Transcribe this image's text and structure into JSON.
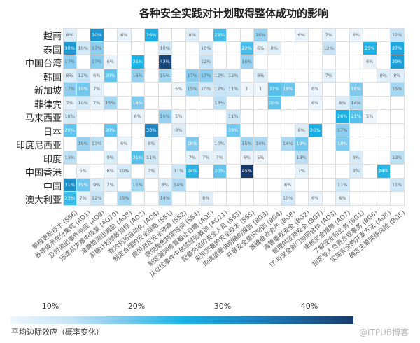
{
  "chart_data": {
    "type": "heatmap",
    "title": "各种安全实践对计划取得整体成功的影响",
    "columns": [
      "积极更新技术 (SS6)",
      "各项技术充分集成 (AO1)",
      "及时做出事件响应 (AO9)",
      "迅速从灾难中恢复 (AO10)",
      "准确检测出威胁 (AO8)",
      "实施计划绩效指标 (AO2)",
      "有效利用自动化 (AO4)",
      "制定合理的安全战略 (SS1)",
      "提供充足安全预算 (SS2)",
      "提供角色特定培训 (SS4)",
      "制定漏洞修复截止日期 (AO5)",
      "从以往事件中总结经验教训 (AO11)",
      "配备充足的安全人员 (SS3)",
      "采用完备的安全技术 (SS5)",
      "向高层提供明确的报告 (BG3)",
      "开展安全意识培训 (BG4)",
      "准确盘点资产 (BG8)",
      "高管重视安全 (BG2)",
      "管理供应商安全 (BG7)",
      "IT 与安全部门协同合作 (AO3)",
      "审核安全措施 (AO7)",
      "了解安全和业务 (BG1)",
      "指定专人负责合规事务 (BG6)",
      "实施安全的开发方法 (AO6)",
      "确定主要网络风险 (BG5)"
    ],
    "rows": [
      {
        "label": "越南",
        "cells": [
          "8%",
          null,
          "30%",
          null,
          "6%",
          null,
          "26%",
          null,
          null,
          "8%",
          null,
          "22%",
          null,
          null,
          "16%",
          null,
          null,
          "6%",
          null,
          "7%",
          null,
          "6%",
          null,
          null,
          "12%"
        ]
      },
      {
        "label": "泰国",
        "cells": [
          "30%",
          "10%",
          "17%",
          null,
          null,
          null,
          null,
          "10%",
          null,
          null,
          "10%",
          null,
          null,
          "22%",
          "6%",
          "8%",
          null,
          null,
          null,
          "12%",
          null,
          null,
          "25%",
          null,
          "27%"
        ]
      },
      {
        "label": "中国台湾",
        "cells": [
          "17%",
          null,
          "17%",
          "6%",
          null,
          "25%",
          null,
          "43%",
          null,
          null,
          "12%",
          null,
          null,
          "16%",
          null,
          null,
          null,
          null,
          null,
          null,
          null,
          null,
          "6%",
          null,
          "29%"
        ]
      },
      {
        "label": "韩国",
        "cells": [
          "8%",
          "12%",
          "6%",
          "20%",
          null,
          "16%",
          null,
          "15%",
          null,
          "17%",
          "17%",
          "12%",
          "12%",
          null,
          "8%",
          null,
          null,
          null,
          null,
          "7%",
          null,
          null,
          null,
          "8%",
          "8%"
        ]
      },
      {
        "label": "新加坡",
        "cells": [
          "17%",
          "19%",
          "7%",
          null,
          null,
          null,
          null,
          null,
          "5%",
          "15%",
          "10%",
          "12%",
          "11%",
          "1",
          "1",
          "21%",
          "19%",
          null,
          "6%",
          null,
          null,
          "18%",
          null,
          null,
          "15%"
        ]
      },
      {
        "label": "菲律宾",
        "cells": [
          "7%",
          "10%",
          "7%",
          "15%",
          null,
          "18%",
          null,
          null,
          null,
          null,
          null,
          "13%",
          null,
          null,
          null,
          "20%",
          null,
          null,
          "6%",
          null,
          "8%",
          "14%",
          null,
          null,
          null
        ]
      },
      {
        "label": "马来西亚",
        "cells": [
          "10%",
          null,
          null,
          null,
          null,
          "6%",
          null,
          "16%",
          "5%",
          null,
          null,
          null,
          "11%",
          null,
          null,
          null,
          null,
          null,
          null,
          null,
          "26%",
          "21%",
          "5%",
          null,
          null
        ]
      },
      {
        "label": "日本",
        "cells": [
          "20%",
          null,
          null,
          "20%",
          null,
          null,
          "33%",
          null,
          "8%",
          null,
          null,
          null,
          "19%",
          null,
          null,
          null,
          null,
          "8%",
          "26%",
          null,
          "17%",
          null,
          null,
          null,
          null
        ]
      },
      {
        "label": "印度尼西亚",
        "cells": [
          null,
          "16%",
          "13%",
          null,
          "6%",
          null,
          "8%",
          null,
          null,
          "18%",
          null,
          "10%",
          null,
          "15%",
          "14%",
          null,
          "14%",
          "19%",
          null,
          null,
          "18%",
          null,
          null,
          null,
          null
        ]
      },
      {
        "label": "印度",
        "cells": [
          "13%",
          null,
          null,
          "9%",
          null,
          "21%",
          "11%",
          null,
          null,
          "7%",
          "7%",
          "7%",
          null,
          "6%",
          "5%",
          null,
          null,
          "13%",
          null,
          null,
          null,
          "9%",
          null,
          null,
          "13%"
        ]
      },
      {
        "label": "中国香港",
        "cells": [
          null,
          "5%",
          null,
          "6%",
          "10%",
          null,
          "7%",
          null,
          "11%",
          "24%",
          null,
          "20%",
          null,
          "45%",
          null,
          null,
          null,
          "7%",
          null,
          null,
          null,
          "9%",
          null,
          "24%",
          null
        ]
      },
      {
        "label": "中国",
        "cells": [
          "31%",
          "19%",
          "9%",
          "7%",
          null,
          "15%",
          null,
          "8%",
          "14%",
          null,
          null,
          null,
          null,
          null,
          null,
          null,
          "6%",
          null,
          null,
          null,
          "11%",
          null,
          null,
          null,
          "11%"
        ]
      },
      {
        "label": "澳大利亚",
        "cells": [
          "23%",
          "7%",
          "12%",
          null,
          "15%",
          null,
          null,
          "14%",
          null,
          null,
          "8%",
          null,
          null,
          null,
          null,
          null,
          "10%",
          null,
          "6%",
          null,
          "6%",
          null,
          null,
          null,
          null
        ]
      }
    ],
    "color_scale": {
      "label": "平均边际效应（概率变化）",
      "ticks": [
        "10%",
        "20%",
        "30%",
        "40%"
      ],
      "range": [
        5,
        45
      ],
      "colors": [
        "#eef6fc",
        "#c6e4f6",
        "#7fcaee",
        "#1bb3e6",
        "#1f86c4",
        "#183a6b"
      ]
    }
  },
  "watermark": "@ITPUB博客"
}
